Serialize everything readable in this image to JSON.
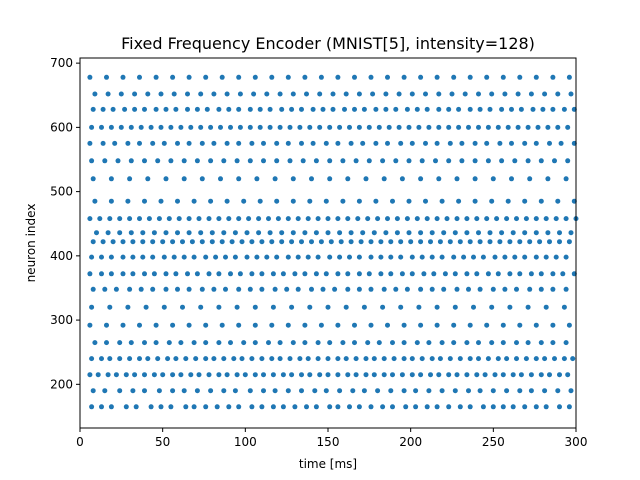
{
  "chart_data": {
    "type": "scatter",
    "title": "Fixed Frequency Encoder (MNIST[5], intensity=128)",
    "xlabel": "time [ms]",
    "ylabel": "neuron index",
    "xlim": [
      0,
      300
    ],
    "ylim": [
      132,
      708
    ],
    "x_ticks": [
      0,
      50,
      100,
      150,
      200,
      250,
      300
    ],
    "y_ticks": [
      200,
      300,
      400,
      500,
      600,
      700
    ],
    "grid": false,
    "marker_color": "#1f77b4",
    "series": [
      {
        "rows": [
          {
            "neuron": 165,
            "times": [
              7,
              13,
              19,
              28,
              34,
              43,
              49,
              55,
              64,
              69,
              76,
              83,
              90,
              96,
              104,
              110,
              117,
              123,
              130,
              137,
              143,
              151,
              156,
              163,
              169,
              176,
              183,
              189,
              197,
              203,
              210,
              216,
              223,
              230,
              236,
              244,
              250,
              256,
              262,
              269,
              276,
              282,
              290,
              296
            ]
          },
          {
            "neuron": 190,
            "times": [
              8,
              15,
              24,
              32,
              39,
              48,
              56,
              63,
              71,
              79,
              87,
              94,
              103,
              111,
              118,
              126,
              134,
              142,
              149,
              157,
              165,
              172,
              180,
              188,
              196,
              203,
              211,
              219,
              227,
              235,
              242,
              250,
              258,
              266,
              273,
              281,
              289,
              297
            ]
          },
          {
            "neuron": 215,
            "times": [
              6,
              11,
              17,
              22,
              28,
              33,
              39,
              45,
              50,
              56,
              61,
              67,
              72,
              78,
              84,
              89,
              95,
              100,
              106,
              111,
              117,
              123,
              128,
              134,
              139,
              145,
              150,
              156,
              162,
              167,
              173,
              178,
              184,
              189,
              195,
              201,
              206,
              212,
              217,
              223,
              228,
              234,
              240,
              245,
              251,
              256,
              262,
              267,
              273,
              279,
              284,
              290,
              295
            ]
          },
          {
            "neuron": 240,
            "times": [
              7,
              13,
              18,
              24,
              30,
              36,
              41,
              47,
              53,
              58,
              64,
              70,
              76,
              81,
              87,
              93,
              98,
              104,
              110,
              116,
              121,
              127,
              133,
              138,
              144,
              150,
              156,
              161,
              167,
              173,
              178,
              184,
              190,
              196,
              201,
              207,
              213,
              218,
              224,
              230,
              236,
              241,
              247,
              253,
              258,
              264,
              270,
              276,
              281,
              287,
              293,
              298
            ]
          },
          {
            "neuron": 265,
            "times": [
              9,
              16,
              24,
              31,
              39,
              46,
              54,
              61,
              69,
              76,
              84,
              91,
              99,
              106,
              114,
              121,
              129,
              136,
              144,
              151,
              159,
              166,
              174,
              181,
              189,
              196,
              204,
              211,
              219,
              226,
              234,
              241,
              249,
              256,
              264,
              271,
              279,
              286,
              294
            ]
          },
          {
            "neuron": 292,
            "times": [
              6,
              16,
              26,
              36,
              46,
              56,
              66,
              76,
              86,
              96,
              106,
              116,
              126,
              136,
              146,
              156,
              166,
              176,
              186,
              196,
              206,
              216,
              226,
              236,
              246,
              256,
              266,
              276,
              286,
              296
            ]
          },
          {
            "neuron": 320,
            "times": [
              7,
              18,
              29,
              40,
              51,
              62,
              73,
              84,
              95,
              106,
              117,
              128,
              139,
              150,
              161,
              172,
              183,
              194,
              205,
              216,
              227,
              238,
              249,
              260,
              271,
              282,
              293
            ]
          },
          {
            "neuron": 348,
            "times": [
              8,
              15,
              22,
              30,
              37,
              44,
              52,
              59,
              66,
              74,
              81,
              88,
              96,
              103,
              110,
              118,
              125,
              132,
              140,
              147,
              154,
              162,
              169,
              176,
              184,
              191,
              198,
              206,
              213,
              220,
              228,
              235,
              242,
              250,
              257,
              264,
              272,
              279,
              286,
              294
            ]
          },
          {
            "neuron": 372,
            "times": [
              6,
              13,
              19,
              26,
              32,
              39,
              45,
              52,
              58,
              65,
              71,
              78,
              84,
              91,
              97,
              104,
              110,
              117,
              123,
              130,
              136,
              143,
              149,
              156,
              162,
              169,
              175,
              182,
              188,
              195,
              201,
              208,
              214,
              221,
              227,
              234,
              240,
              247,
              253,
              260,
              266,
              273,
              279,
              286,
              292,
              299
            ]
          },
          {
            "neuron": 398,
            "times": [
              7,
              13,
              19,
              26,
              32,
              38,
              44,
              51,
              57,
              63,
              69,
              76,
              82,
              88,
              94,
              101,
              107,
              113,
              119,
              126,
              132,
              138,
              144,
              151,
              157,
              163,
              169,
              176,
              182,
              188,
              194,
              201,
              207,
              213,
              219,
              226,
              232,
              238,
              244,
              251,
              257,
              263,
              269,
              276,
              282,
              288,
              294
            ]
          },
          {
            "neuron": 422,
            "times": [
              8,
              14,
              20,
              26,
              32,
              38,
              44,
              50,
              56,
              62,
              68,
              74,
              80,
              86,
              92,
              98,
              104,
              110,
              116,
              122,
              128,
              134,
              140,
              146,
              152,
              158,
              164,
              170,
              176,
              182,
              188,
              194,
              200,
              206,
              212,
              218,
              224,
              230,
              236,
              242,
              248,
              254,
              260,
              266,
              272,
              278,
              284,
              290,
              296
            ]
          },
          {
            "neuron": 436,
            "times": [
              10,
              17,
              24,
              31,
              38,
              45,
              52,
              59,
              66,
              73,
              80,
              87,
              94,
              101,
              108,
              115,
              122,
              129,
              136,
              143,
              150,
              157,
              164,
              171,
              178,
              185,
              192,
              199,
              206,
              213,
              220,
              227,
              234,
              241,
              248,
              255,
              262,
              269,
              276,
              283,
              290,
              297
            ]
          },
          {
            "neuron": 458,
            "times": [
              6,
              12,
              18,
              24,
              30,
              36,
              42,
              48,
              54,
              60,
              66,
              72,
              78,
              84,
              90,
              96,
              102,
              108,
              114,
              120,
              126,
              132,
              138,
              144,
              150,
              156,
              162,
              168,
              174,
              180,
              186,
              192,
              198,
              204,
              210,
              216,
              222,
              228,
              234,
              240,
              246,
              252,
              258,
              264,
              270,
              276,
              282,
              288,
              294,
              300
            ]
          },
          {
            "neuron": 485,
            "times": [
              9,
              19,
              29,
              39,
              49,
              59,
              69,
              79,
              89,
              99,
              109,
              119,
              129,
              139,
              149,
              159,
              169,
              179,
              189,
              199,
              209,
              219,
              229,
              239,
              249,
              259,
              269,
              279,
              289,
              299
            ]
          },
          {
            "neuron": 520,
            "times": [
              8,
              19,
              30,
              41,
              52,
              63,
              74,
              85,
              96,
              107,
              118,
              129,
              140,
              151,
              162,
              173,
              184,
              195,
              206,
              217,
              228,
              239,
              250,
              261,
              272,
              283,
              294
            ]
          },
          {
            "neuron": 548,
            "times": [
              7,
              15,
              23,
              31,
              39,
              47,
              55,
              63,
              71,
              79,
              87,
              95,
              103,
              111,
              119,
              127,
              135,
              143,
              151,
              159,
              167,
              175,
              183,
              191,
              199,
              207,
              215,
              223,
              231,
              239,
              247,
              255,
              263,
              271,
              279,
              287,
              295
            ]
          },
          {
            "neuron": 575,
            "times": [
              6,
              14,
              21,
              29,
              36,
              44,
              51,
              59,
              66,
              74,
              81,
              89,
              96,
              104,
              111,
              119,
              126,
              134,
              141,
              149,
              156,
              164,
              171,
              179,
              186,
              194,
              201,
              209,
              216,
              224,
              231,
              239,
              246,
              254,
              261,
              269,
              276,
              284,
              291,
              299
            ]
          },
          {
            "neuron": 600,
            "times": [
              7,
              13,
              19,
              25,
              31,
              37,
              43,
              49,
              55,
              61,
              67,
              73,
              79,
              85,
              91,
              97,
              103,
              109,
              115,
              121,
              127,
              133,
              139,
              145,
              151,
              157,
              163,
              169,
              175,
              181,
              187,
              193,
              199,
              205,
              211,
              217,
              223,
              229,
              235,
              241,
              247,
              253,
              259,
              265,
              271,
              277,
              283,
              289,
              295
            ]
          },
          {
            "neuron": 628,
            "times": [
              8,
              14,
              20,
              27,
              33,
              39,
              46,
              52,
              58,
              65,
              71,
              77,
              84,
              90,
              96,
              103,
              109,
              115,
              122,
              128,
              134,
              141,
              147,
              153,
              160,
              166,
              172,
              179,
              185,
              191,
              198,
              204,
              210,
              217,
              223,
              229,
              236,
              242,
              248,
              255,
              261,
              267,
              274,
              280,
              286,
              293,
              299
            ]
          },
          {
            "neuron": 652,
            "times": [
              9,
              17,
              25,
              33,
              41,
              49,
              57,
              65,
              73,
              81,
              89,
              97,
              105,
              113,
              121,
              129,
              137,
              145,
              153,
              161,
              169,
              177,
              185,
              193,
              201,
              209,
              217,
              225,
              233,
              241,
              249,
              257,
              265,
              273,
              281,
              289,
              297
            ]
          },
          {
            "neuron": 678,
            "times": [
              6,
              16,
              26,
              36,
              46,
              56,
              66,
              76,
              86,
              96,
              106,
              116,
              126,
              136,
              146,
              156,
              166,
              176,
              186,
              196,
              206,
              216,
              226,
              236,
              246,
              256,
              266,
              276,
              286,
              296
            ]
          }
        ]
      }
    ]
  }
}
